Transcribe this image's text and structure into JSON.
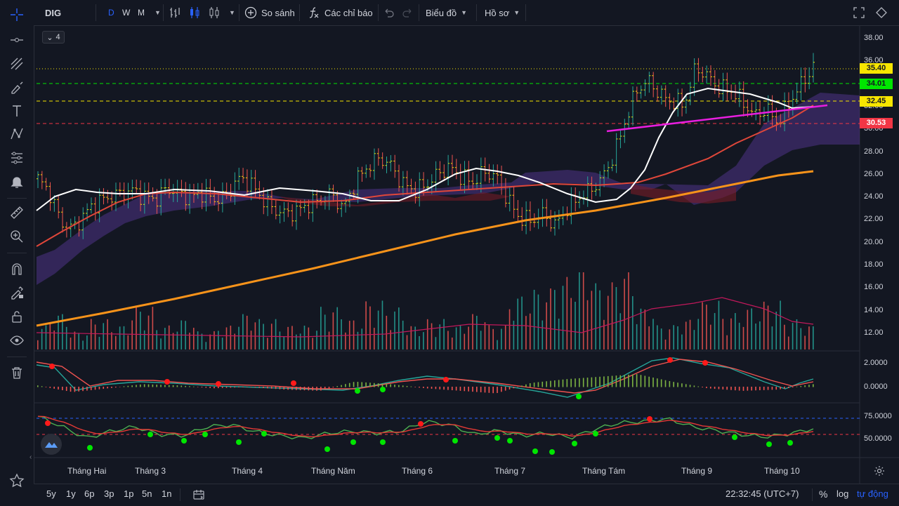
{
  "symbol": "DIG",
  "intervals": [
    {
      "label": "D",
      "active": true
    },
    {
      "label": "W",
      "active": false
    },
    {
      "label": "M",
      "active": false
    }
  ],
  "toolbar": {
    "compare_label": "So sánh",
    "indicators_label": "Các chỉ báo",
    "chart_label": "Biểu đồ",
    "profile_label": "Hồ sơ"
  },
  "legend_count": "4",
  "price_axis": {
    "ticks": [
      "38.00",
      "36.00",
      "34.00",
      "32.00",
      "30.00",
      "28.00",
      "26.00",
      "24.00",
      "22.00",
      "20.00",
      "18.00",
      "16.00",
      "14.00",
      "12.00"
    ],
    "price_tags": [
      {
        "value": "35.40",
        "color": "#f7e600"
      },
      {
        "value": "34.01",
        "color": "#00e600"
      },
      {
        "value": "32.45",
        "color": "#f7e600"
      },
      {
        "value": "30.53",
        "color": "#f23645"
      }
    ]
  },
  "macd_axis": [
    "2.0000",
    "0.0000"
  ],
  "rsi_axis": [
    "75.0000",
    "50.0000"
  ],
  "months": [
    "Tháng Hai",
    "Tháng 3",
    "Tháng 4",
    "Tháng Năm",
    "Tháng 6",
    "Tháng 7",
    "Tháng Tám",
    "Tháng 9",
    "Tháng 10"
  ],
  "bottom": {
    "ranges": [
      "5y",
      "1y",
      "6p",
      "3p",
      "1p",
      "5n",
      "1n"
    ],
    "time": "22:32:45 (UTC+7)",
    "percent_label": "%",
    "log_label": "log",
    "auto_label": "tự động"
  },
  "colors": {
    "background": "#131722",
    "up": "#26a69a",
    "down": "#ef5350",
    "accent": "#2962ff"
  },
  "chart_data": {
    "type": "candlestick",
    "title": "",
    "ylim": [
      11,
      39
    ],
    "close_series": [
      25.8,
      24.6,
      22.0,
      21.5,
      22.8,
      23.8,
      24.2,
      24.5,
      24.8,
      24.3,
      24.0,
      25.0,
      24.5,
      24.2,
      24.6,
      24.0,
      24.3,
      25.8,
      25.5,
      24.2,
      23.2,
      22.8,
      23.0,
      23.6,
      24.0,
      24.5,
      23.2,
      25.5,
      26.8,
      27.6,
      27.0,
      25.4,
      24.8,
      25.2,
      26.2,
      26.8,
      26.0,
      25.5,
      26.4,
      26.0,
      24.0,
      22.4,
      22.2,
      22.8,
      21.8,
      23.2,
      24.2,
      24.8,
      25.8,
      27.8,
      30.8,
      33.5,
      34.2,
      33.0,
      32.4,
      32.2,
      35.4,
      34.6,
      33.6,
      33.4,
      32.4,
      31.2,
      31.8,
      30.6,
      32.4,
      34.0,
      35.4
    ],
    "ema_white": [
      22.8,
      24.6,
      24.1,
      24.3,
      24.5,
      24.4,
      24.7,
      24.5,
      24.9,
      24.7,
      23.8,
      24.6,
      25.8,
      26.5,
      26.2,
      25.0,
      23.6,
      23.6,
      28.0,
      32.5,
      33.9,
      32.9,
      31.9,
      31.8,
      32.2,
      33.6
    ],
    "ma_red": [
      19.7,
      23.5,
      24.1,
      24.4,
      24.0,
      24.0,
      24.2,
      24.8,
      25.2,
      25.3,
      25.1,
      25.4,
      27.0,
      30.0,
      31.3,
      32.0
    ],
    "ma_orange": [
      12.8,
      14.8,
      16.5,
      18.0,
      19.5,
      21.0,
      22.3,
      23.3,
      24.5,
      25.8,
      26.3
    ],
    "magenta_trendline": [
      [
        29.9
      ],
      [
        32.0
      ]
    ],
    "cloud_top": [
      20.2,
      23.5,
      24.5,
      25.3,
      24.1,
      25.4,
      26.0,
      26.0,
      30.0,
      32.6,
      32.6
    ],
    "cloud_bottom": [
      16.9,
      20.0,
      23.6,
      24.3,
      23.8,
      24.3,
      24.5,
      24.1,
      25.0,
      28.5,
      28.5
    ],
    "volume_series": [
      4,
      6,
      3,
      5,
      4,
      7,
      4,
      5,
      3,
      4,
      6,
      5,
      4,
      4,
      7,
      5,
      8,
      7,
      4,
      5,
      4,
      6,
      4,
      9,
      10,
      12,
      14,
      11,
      13,
      7,
      4,
      5,
      8,
      6,
      7,
      8,
      5,
      4
    ],
    "macd_histogram": [
      0.1,
      -0.4,
      -0.1,
      0.2,
      0.1,
      -0.1,
      0.0,
      -0.2,
      -0.3,
      0.4,
      0.2,
      -0.1,
      -0.3,
      -0.5,
      0.3,
      0.6,
      0.8,
      1.0,
      0.4,
      -0.1,
      -0.3,
      -0.2,
      0.2
    ],
    "rsi_series": [
      78,
      62,
      44,
      55,
      62,
      50,
      48,
      62,
      65,
      54,
      48,
      44,
      52,
      55,
      52,
      55,
      70,
      65,
      50,
      56,
      48,
      52,
      45,
      58,
      68,
      70,
      74,
      62,
      56,
      50,
      46,
      51,
      59
    ]
  }
}
